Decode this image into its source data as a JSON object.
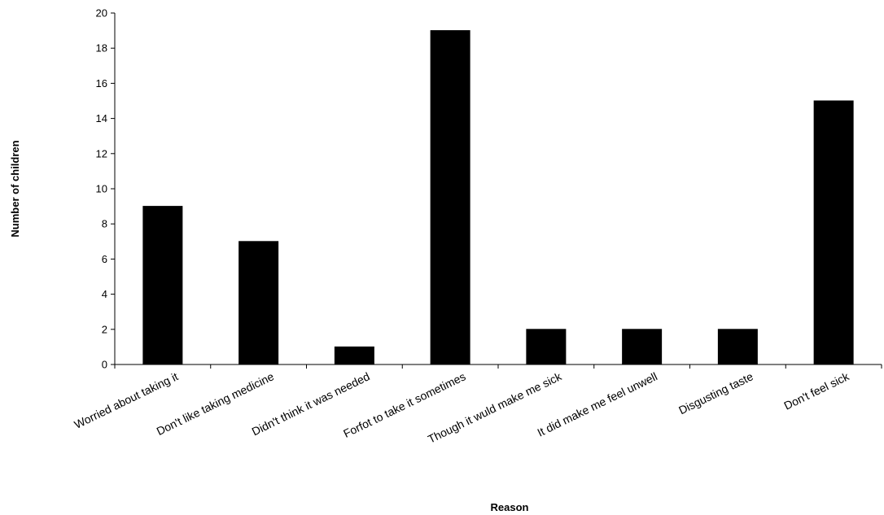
{
  "chart_data": {
    "type": "bar",
    "title": "",
    "xlabel": "Reason",
    "ylabel": "Number of children",
    "ylim": [
      0,
      20
    ],
    "yticks": [
      0,
      2,
      4,
      6,
      8,
      10,
      12,
      14,
      16,
      18,
      20
    ],
    "ytick_labels": [
      "0",
      "2",
      "4",
      "6",
      "8",
      "10",
      "12",
      "14",
      "16",
      "18",
      "20"
    ],
    "categories": [
      "Worried about taking it",
      "Don't like taking medicine",
      "Didn't think it was needed",
      "Forfot to take it sometimes",
      "Though it wuld make me sick",
      "It did make me feel unwell",
      "Disgusting taste",
      "Don't feel sick"
    ],
    "values": [
      9,
      7,
      1,
      19,
      2,
      2,
      2,
      15
    ],
    "grid": false,
    "legend": "none",
    "bar_color": "#000000"
  }
}
